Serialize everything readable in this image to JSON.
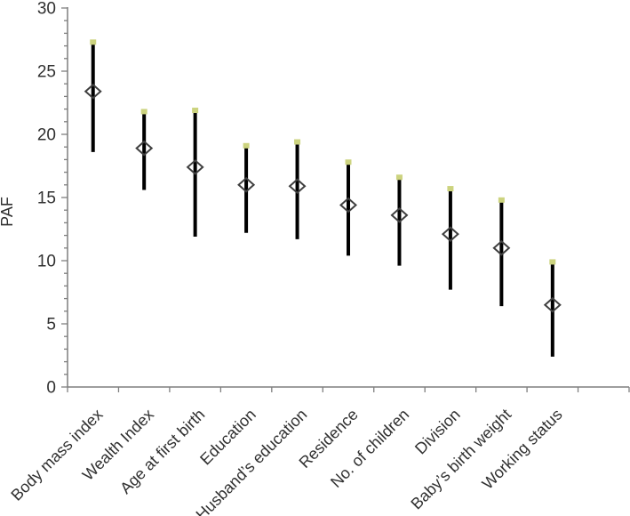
{
  "chart_data": {
    "type": "scatter",
    "title": "",
    "xlabel": "",
    "ylabel": "PAF",
    "ylim": [
      0,
      30
    ],
    "ytick_major_step": 5,
    "ytick_minor_step": 1,
    "ytick_labels": [
      "0",
      "5",
      "10",
      "15",
      "20",
      "25",
      "30"
    ],
    "grid": false,
    "legend_position": "none",
    "categories": [
      "Body mass index",
      "Wealth Index",
      "Age at first birth",
      "Education",
      "Husband’s education",
      "Residence",
      "No. of children",
      "Division",
      "Baby’s birth weight",
      "Working status"
    ],
    "series": [
      {
        "marker": "open-diamond",
        "values": [
          23.4,
          18.9,
          17.4,
          16.0,
          15.9,
          14.4,
          13.6,
          12.1,
          11.0,
          6.5
        ],
        "ci_low": [
          18.6,
          15.6,
          11.9,
          12.2,
          11.7,
          10.4,
          9.6,
          7.7,
          6.4,
          2.4
        ],
        "ci_high": [
          27.3,
          21.8,
          21.9,
          19.1,
          19.4,
          17.8,
          16.6,
          15.7,
          14.8,
          9.9
        ]
      }
    ],
    "colors": {
      "error_bar": "#000000",
      "marker_stroke": "#3f3f3f",
      "ci_upper_cap": "#ccd37f",
      "axis": "#7f7f7f",
      "tick_label": "#303030"
    }
  }
}
